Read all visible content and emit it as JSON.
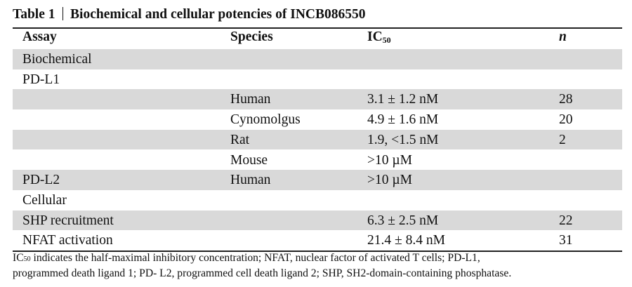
{
  "title": {
    "label": "Table 1",
    "text": "Biochemical and cellular potencies of INCB086550"
  },
  "header": {
    "assay": "Assay",
    "species": "Species",
    "ic50_main": "IC",
    "ic50_sub": "50",
    "n": "n"
  },
  "rows": [
    {
      "assay": "Biochemical",
      "species": "",
      "ic50": "",
      "n": "",
      "shaded": true
    },
    {
      "assay": "PD-L1",
      "species": "",
      "ic50": "",
      "n": "",
      "shaded": false
    },
    {
      "assay": "",
      "species": "Human",
      "ic50": "3.1 ± 1.2 nM",
      "n": "28",
      "shaded": true
    },
    {
      "assay": "",
      "species": "Cynomolgus",
      "ic50": "4.9 ± 1.6 nM",
      "n": "20",
      "shaded": false
    },
    {
      "assay": "",
      "species": "Rat",
      "ic50": "1.9, <1.5 nM",
      "n": "2",
      "shaded": true
    },
    {
      "assay": "",
      "species": "Mouse",
      "ic50": ">10 µM",
      "n": "",
      "shaded": false
    },
    {
      "assay": "PD-L2",
      "species": "Human",
      "ic50": ">10 µM",
      "n": "",
      "shaded": true
    },
    {
      "assay": "Cellular",
      "species": "",
      "ic50": "",
      "n": "",
      "shaded": false
    },
    {
      "assay": "SHP recruitment",
      "species": "",
      "ic50": "6.3 ± 2.5 nM",
      "n": "22",
      "shaded": true
    },
    {
      "assay": "NFAT activation",
      "species": "",
      "ic50": "21.4 ± 8.4 nM",
      "n": "31",
      "shaded": false
    }
  ],
  "footnote": {
    "abbr_main": "IC",
    "abbr_sub": "50",
    "line1_rest": " indicates the half-maximal inhibitory concentration; NFAT, nuclear factor of activated T cells; PD-L1,",
    "line2": "programmed death ligand 1; PD- L2, programmed cell death ligand 2; SHP, SH2-domain-containing phosphatase."
  }
}
